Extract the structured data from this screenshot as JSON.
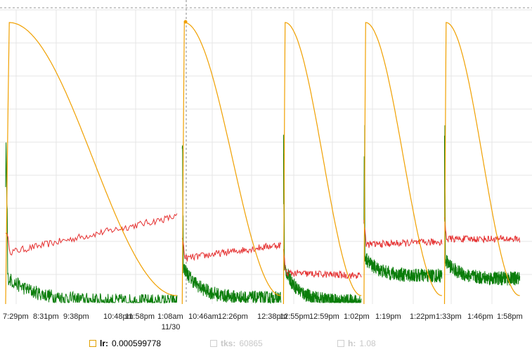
{
  "chart_data": {
    "type": "line",
    "x_ticks": [
      "7:29pm",
      "8:31pm",
      "9:38pm",
      "10:48pm",
      "11:58pm",
      "1:08am",
      "10:46am",
      "12:26pm",
      "12:38pm",
      "12:55pm",
      "12:59pm",
      "1:02pm",
      "1:19pm",
      "1:22pm",
      "1:33pm",
      "1:46pm",
      "1:58pm"
    ],
    "x_subtick": "11/30",
    "grid": "on",
    "legend_placement": "bottom",
    "colors": {
      "orange": "#f0a000",
      "red": "#e53030",
      "green": "#0a7d0a",
      "grid": "#e6e6e6",
      "cursor": "#8a8a8a"
    },
    "segments": [
      {
        "x": [
          0.0,
          0.33
        ],
        "orange_peak": 1.0,
        "orange_start_shape": "slow",
        "red": [
          0.18,
          0.31
        ],
        "green": [
          0.1,
          0.01
        ]
      },
      {
        "x": [
          0.34,
          0.53
        ],
        "orange_peak": 1.0,
        "red": [
          0.16,
          0.21
        ],
        "green": [
          0.14,
          0.02
        ]
      },
      {
        "x": [
          0.535,
          0.685
        ],
        "orange_peak": 1.0,
        "red": [
          0.11,
          0.1
        ],
        "green": [
          0.14,
          0.01
        ]
      },
      {
        "x": [
          0.69,
          0.84
        ],
        "orange_peak": 1.0,
        "red": [
          0.21,
          0.22
        ],
        "green": [
          0.17,
          0.1
        ]
      },
      {
        "x": [
          0.845,
          0.99
        ],
        "orange_peak": 1.0,
        "red": [
          0.23,
          0.23
        ],
        "green": [
          0.16,
          0.09
        ]
      }
    ]
  },
  "legend": [
    {
      "name": "lr:",
      "value": "0.000599778",
      "active": true
    },
    {
      "name": "tks:",
      "value": "60865",
      "active": false
    },
    {
      "name": "h:",
      "value": "1.08",
      "active": false
    }
  ]
}
